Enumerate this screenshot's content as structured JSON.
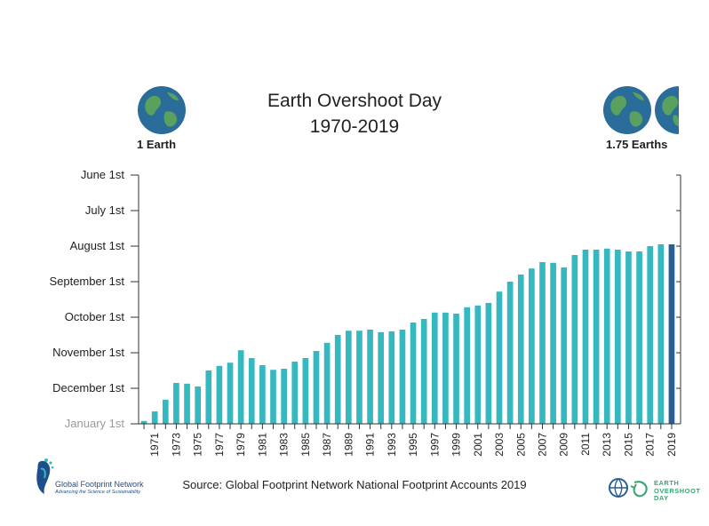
{
  "header": {
    "title_line1": "Earth Overshoot Day",
    "title_line2": "1970-2019",
    "left_label": "1 Earth",
    "right_label": "1.75 Earths"
  },
  "footer": {
    "source": "Source: Global Footprint Network National Footprint Accounts 2019",
    "gfn_name": "Global Footprint Network",
    "gfn_tagline": "Advancing the Science of Sustainability",
    "eod_line1": "EARTH",
    "eod_line2": "OVERSHOOT",
    "eod_line3": "DAY"
  },
  "colors": {
    "bar": "#35b8bf",
    "bar_last": "#2a5f94",
    "axis": "#333333",
    "earth_ocean": "#2b6d9a",
    "earth_land": "#5aa05f",
    "gfn_blue": "#1d4f8c",
    "eod_green": "#3aa775"
  },
  "chart_data": {
    "type": "bar",
    "title": "Earth Overshoot Day 1970-2019",
    "categories": [
      "1970",
      "1971",
      "1972",
      "1973",
      "1974",
      "1975",
      "1976",
      "1977",
      "1978",
      "1979",
      "1980",
      "1981",
      "1982",
      "1983",
      "1984",
      "1985",
      "1986",
      "1987",
      "1988",
      "1989",
      "1990",
      "1991",
      "1992",
      "1993",
      "1994",
      "1995",
      "1996",
      "1997",
      "1998",
      "1999",
      "2000",
      "2001",
      "2002",
      "2003",
      "2004",
      "2005",
      "2006",
      "2007",
      "2008",
      "2009",
      "2010",
      "2011",
      "2012",
      "2013",
      "2014",
      "2015",
      "2016",
      "2017",
      "2018",
      "2019"
    ],
    "x_tick_labels": [
      "1971",
      "1973",
      "1975",
      "1977",
      "1979",
      "1981",
      "1983",
      "1985",
      "1987",
      "1989",
      "1991",
      "1993",
      "1995",
      "1997",
      "1999",
      "2001",
      "2003",
      "2005",
      "2007",
      "2009",
      "2011",
      "2013",
      "2015",
      "2017",
      "2019"
    ],
    "y_tick_labels": [
      "January 1st",
      "December 1st",
      "November 1st",
      "October 1st",
      "September 1st",
      "August 1st",
      "July 1st",
      "June 1st"
    ],
    "y_unit": "months before January 1st",
    "ylim": [
      0,
      7
    ],
    "values": [
      0.08,
      0.35,
      0.68,
      1.15,
      1.13,
      1.05,
      1.5,
      1.63,
      1.72,
      2.07,
      1.85,
      1.65,
      1.52,
      1.55,
      1.75,
      1.85,
      2.05,
      2.28,
      2.5,
      2.62,
      2.62,
      2.65,
      2.58,
      2.6,
      2.65,
      2.85,
      2.95,
      3.13,
      3.13,
      3.1,
      3.28,
      3.33,
      3.4,
      3.72,
      4.0,
      4.2,
      4.37,
      4.55,
      4.53,
      4.4,
      4.75,
      4.9,
      4.9,
      4.93,
      4.9,
      4.85,
      4.85,
      5.0,
      5.05,
      5.05
    ],
    "last_bar_highlighted": true
  }
}
